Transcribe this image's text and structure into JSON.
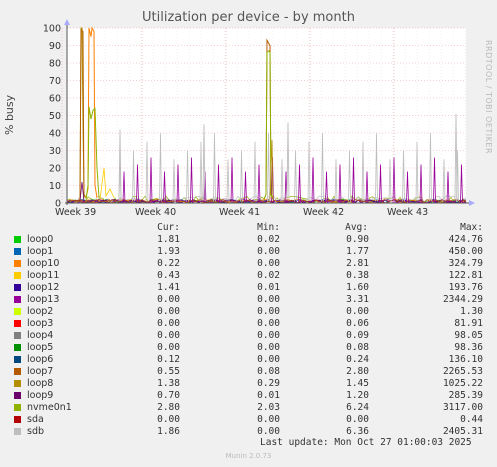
{
  "title": "Utilization per device - by month",
  "ylabel": "% busy",
  "side_text": "RRDTOOL / TOBI OETIKER",
  "footer": {
    "last_update": "Last update: Mon Oct 27 01:00:03 2025",
    "munin": "Munin 2.0.73"
  },
  "legend_headers": {
    "cur": "Cur:",
    "min": "Min:",
    "avg": "Avg:",
    "max": "Max:"
  },
  "chart_data": {
    "type": "line",
    "title": "Utilization per device - by month",
    "ylabel": "% busy",
    "ylim": [
      0,
      100
    ],
    "yticks": [
      "0",
      "10",
      "20",
      "30",
      "40",
      "50",
      "60",
      "70",
      "80",
      "90",
      "100"
    ],
    "xticks": [
      "Week 39",
      "Week 40",
      "Week 41",
      "Week 42",
      "Week 43"
    ],
    "grid": true,
    "series": [
      {
        "name": "loop0",
        "color": "#00cc00",
        "cur": "1.81",
        "min": "0.02",
        "avg": "0.90",
        "max": "424.76"
      },
      {
        "name": "loop1",
        "color": "#0066b3",
        "cur": "1.93",
        "min": "0.00",
        "avg": "1.77",
        "max": "450.00"
      },
      {
        "name": "loop10",
        "color": "#ff8000",
        "cur": "0.22",
        "min": "0.00",
        "avg": "2.81",
        "max": "324.79"
      },
      {
        "name": "loop11",
        "color": "#ffcc00",
        "cur": "0.43",
        "min": "0.02",
        "avg": "0.38",
        "max": "122.81"
      },
      {
        "name": "loop12",
        "color": "#330099",
        "cur": "1.41",
        "min": "0.01",
        "avg": "1.60",
        "max": "193.76"
      },
      {
        "name": "loop13",
        "color": "#990099",
        "cur": "0.00",
        "min": "0.00",
        "avg": "3.31",
        "max": "2344.29"
      },
      {
        "name": "loop2",
        "color": "#ccff00",
        "cur": "0.00",
        "min": "0.00",
        "avg": "0.00",
        "max": "1.30"
      },
      {
        "name": "loop3",
        "color": "#ff0000",
        "cur": "0.00",
        "min": "0.00",
        "avg": "0.06",
        "max": "81.91"
      },
      {
        "name": "loop4",
        "color": "#808080",
        "cur": "0.00",
        "min": "0.00",
        "avg": "0.09",
        "max": "98.05"
      },
      {
        "name": "loop5",
        "color": "#008f00",
        "cur": "0.00",
        "min": "0.00",
        "avg": "0.08",
        "max": "98.36"
      },
      {
        "name": "loop6",
        "color": "#00487d",
        "cur": "0.12",
        "min": "0.00",
        "avg": "0.24",
        "max": "136.10"
      },
      {
        "name": "loop7",
        "color": "#b35a00",
        "cur": "0.55",
        "min": "0.08",
        "avg": "2.80",
        "max": "2265.53"
      },
      {
        "name": "loop8",
        "color": "#b38f00",
        "cur": "1.38",
        "min": "0.29",
        "avg": "1.45",
        "max": "1025.22"
      },
      {
        "name": "loop9",
        "color": "#6b006b",
        "cur": "0.70",
        "min": "0.01",
        "avg": "1.20",
        "max": "285.39"
      },
      {
        "name": "nvme0n1",
        "color": "#8fb300",
        "cur": "2.80",
        "min": "2.03",
        "avg": "6.24",
        "max": "3117.00"
      },
      {
        "name": "sda",
        "color": "#b30000",
        "cur": "0.00",
        "min": "0.00",
        "avg": "0.00",
        "max": "0.44"
      },
      {
        "name": "sdb",
        "color": "#bebebe",
        "cur": "1.86",
        "min": "0.00",
        "avg": "6.36",
        "max": "2405.31"
      }
    ]
  }
}
